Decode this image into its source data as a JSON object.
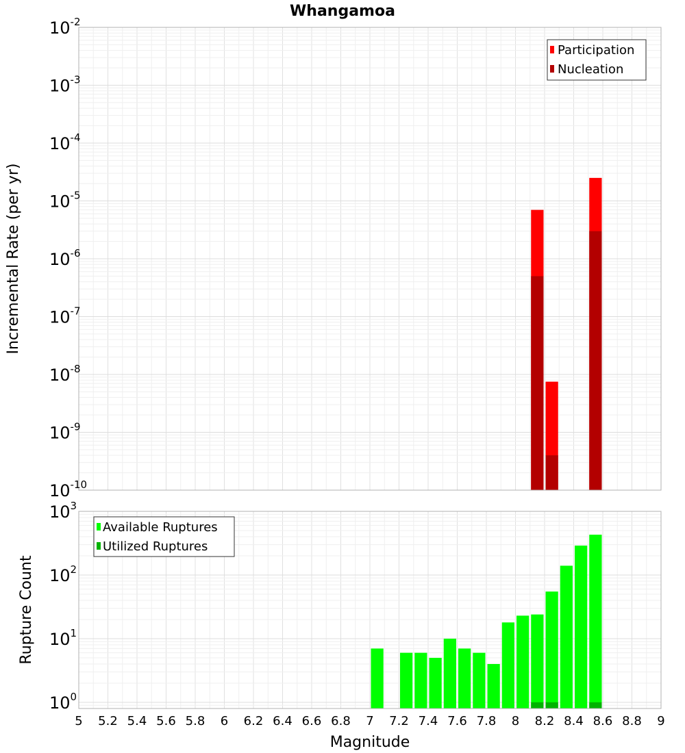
{
  "chart_data": [
    {
      "id": "rates",
      "type": "bar",
      "title": "Whangamoa",
      "ylabel": "Incremental Rate (per yr)",
      "xlim": [
        5,
        9
      ],
      "ylim": [
        1e-10,
        0.01
      ],
      "yscale": "log",
      "ytick_exponents": [
        "-10",
        "-9",
        "-8",
        "-7",
        "-6",
        "-5",
        "-4",
        "-3",
        "-2"
      ],
      "grid": true,
      "legend_position": "top-right",
      "series": [
        {
          "name": "Participation",
          "color": "#ff0000",
          "points": [
            {
              "x": 8.15,
              "y": 7e-06
            },
            {
              "x": 8.25,
              "y": 7.5e-09
            },
            {
              "x": 8.55,
              "y": 2.5e-05
            }
          ]
        },
        {
          "name": "Nucleation",
          "color": "#b30000",
          "points": [
            {
              "x": 8.15,
              "y": 5e-07
            },
            {
              "x": 8.25,
              "y": 4e-10
            },
            {
              "x": 8.55,
              "y": 3e-06
            }
          ]
        }
      ]
    },
    {
      "id": "counts",
      "type": "bar",
      "xlabel": "Magnitude",
      "ylabel": "Rupture Count",
      "xlim": [
        5,
        9
      ],
      "xticks": [
        "5",
        "5.2",
        "5.4",
        "5.6",
        "5.8",
        "6",
        "6.2",
        "6.4",
        "6.6",
        "6.8",
        "7",
        "7.2",
        "7.4",
        "7.6",
        "7.8",
        "8",
        "8.2",
        "8.4",
        "8.6",
        "8.8",
        "9"
      ],
      "ylim": [
        0.8,
        1000
      ],
      "yscale": "log",
      "ytick_exponents": [
        "0",
        "1",
        "2",
        "3"
      ],
      "grid": true,
      "legend_position": "top-left",
      "series": [
        {
          "name": "Available Ruptures",
          "color": "#00ff00",
          "points": [
            {
              "x": 7.05,
              "y": 7
            },
            {
              "x": 7.25,
              "y": 6
            },
            {
              "x": 7.35,
              "y": 6
            },
            {
              "x": 7.45,
              "y": 5
            },
            {
              "x": 7.55,
              "y": 10
            },
            {
              "x": 7.65,
              "y": 7
            },
            {
              "x": 7.75,
              "y": 6
            },
            {
              "x": 7.85,
              "y": 4
            },
            {
              "x": 7.95,
              "y": 18
            },
            {
              "x": 8.05,
              "y": 23
            },
            {
              "x": 8.15,
              "y": 24
            },
            {
              "x": 8.25,
              "y": 55
            },
            {
              "x": 8.35,
              "y": 140
            },
            {
              "x": 8.45,
              "y": 290
            },
            {
              "x": 8.55,
              "y": 430
            }
          ]
        },
        {
          "name": "Utilized Ruptures",
          "color": "#00b300",
          "points": [
            {
              "x": 8.15,
              "y": 1
            },
            {
              "x": 8.25,
              "y": 1
            },
            {
              "x": 8.55,
              "y": 1
            }
          ]
        }
      ]
    }
  ]
}
